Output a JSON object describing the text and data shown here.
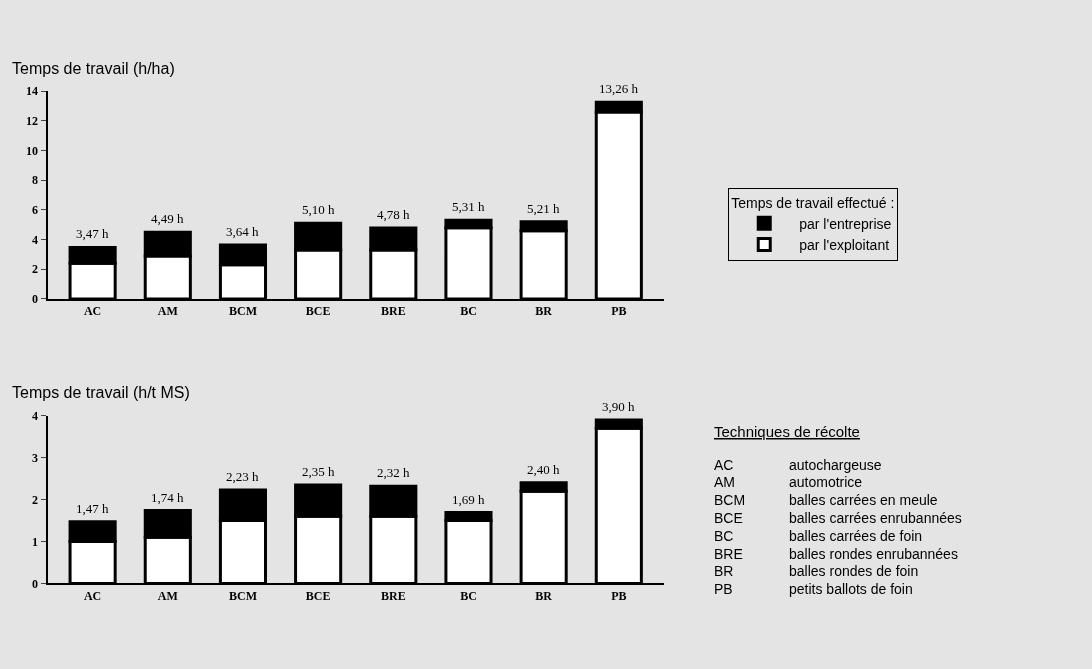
{
  "chart_data": [
    {
      "type": "bar",
      "title": "Temps de travail (h/ha)",
      "stacked": true,
      "categories": [
        "AC",
        "AM",
        "BCM",
        "BCE",
        "BRE",
        "BC",
        "BR",
        "PB"
      ],
      "series": [
        {
          "name": "par l'exploitant",
          "color": "#ffffff",
          "values": [
            2.4,
            2.9,
            2.3,
            3.3,
            3.3,
            4.8,
            4.6,
            12.6
          ]
        },
        {
          "name": "par l'entreprise",
          "color": "#000000",
          "values": [
            1.07,
            1.59,
            1.34,
            1.8,
            1.48,
            0.51,
            0.61,
            0.66
          ]
        }
      ],
      "totals": [
        "3,47 h",
        "4,49 h",
        "3,64 h",
        "5,10 h",
        "4,78 h",
        "5,31 h",
        "5,21 h",
        "13,26 h"
      ],
      "ylim": [
        0,
        14
      ],
      "yticks": [
        0,
        2,
        4,
        6,
        8,
        10,
        12,
        14
      ],
      "legend": "right",
      "legend_title": "Temps de travail effectué :",
      "grid": false
    },
    {
      "type": "bar",
      "title": "Temps de travail (h/t MS)",
      "stacked": true,
      "categories": [
        "AC",
        "AM",
        "BCM",
        "BCE",
        "BRE",
        "BC",
        "BR",
        "PB"
      ],
      "series": [
        {
          "color": "#ffffff",
          "values": [
            1.0,
            1.1,
            1.5,
            1.6,
            1.6,
            1.5,
            2.2,
            3.7
          ]
        },
        {
          "color": "#000000",
          "values": [
            0.47,
            0.64,
            0.73,
            0.75,
            0.72,
            0.19,
            0.2,
            0.2
          ]
        }
      ],
      "totals": [
        "1,47 h",
        "1,74 h",
        "2,23 h",
        "2,35 h",
        "2,32 h",
        "1,69 h",
        "2,40 h",
        "3,90 h"
      ],
      "ylim": [
        0,
        4
      ],
      "yticks": [
        0,
        1,
        2,
        3,
        4
      ],
      "legend": false,
      "grid": false
    },
    {
      "type": "other",
      "title": "Techniques de récolte",
      "annotations": [
        "AC",
        "autochargeuse",
        "AM",
        "automotrice",
        "BCM",
        "balles carrées en meule",
        "BCE",
        "balles carrées enrubannées",
        "BC",
        "balles carrées de foin",
        "BRE",
        "balles rondes enrubannées",
        "BR",
        "balles rondes de foin",
        "PB",
        "petits ballots de foin"
      ]
    }
  ]
}
